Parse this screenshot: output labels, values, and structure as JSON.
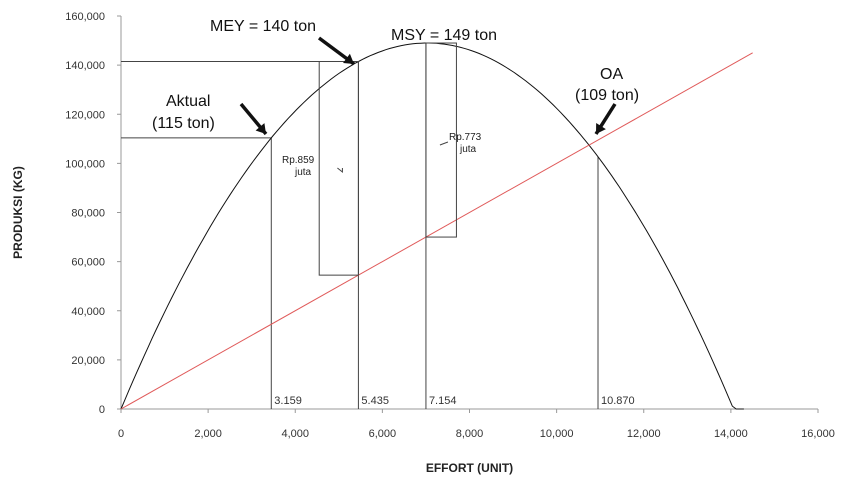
{
  "chart_data": {
    "type": "line",
    "title": "",
    "xlabel": "EFFORT (UNIT)",
    "ylabel": "PRODUKSI (KG)",
    "xlim": [
      0,
      16000
    ],
    "ylim": [
      0,
      160000
    ],
    "x_ticks": [
      "0",
      "2,000",
      "4,000",
      "6,000",
      "8,000",
      "10,000",
      "12,000",
      "14,000",
      "16,000"
    ],
    "y_ticks": [
      "0",
      "20,000",
      "40,000",
      "60,000",
      "80,000",
      "100,000",
      "120,000",
      "140,000",
      "160,000"
    ],
    "grid": false,
    "series": [
      {
        "type": "curve",
        "color": "#111111",
        "peak_x": 7030,
        "peak_y": 149000,
        "x_end": 14300
      },
      {
        "type": "line",
        "color": "#e05a5a",
        "x": [
          0,
          14500
        ],
        "y": [
          0,
          145000
        ]
      }
    ],
    "effort_points": [
      {
        "x": 3450,
        "label": "3.159"
      },
      {
        "x": 5450,
        "label": "5.435"
      },
      {
        "x": 7000,
        "label": "7.154"
      },
      {
        "x": 10950,
        "label": "10.870"
      }
    ],
    "annotations": {
      "mey": "MEY = 140 ton",
      "msy": "MSY = 149 ton",
      "oa_line1": "OA",
      "oa_line2": "(109 ton)",
      "aktual_line1": "Aktual",
      "aktual_line2": "(115 ton)",
      "rp859_line1": "Rp.859",
      "rp859_line2": "juta",
      "rp773_line1": "Rp.773",
      "rp773_line2": "juta"
    },
    "colors": {
      "curve": "#111111",
      "line": "#e05a5a",
      "axis": "#999999"
    }
  }
}
